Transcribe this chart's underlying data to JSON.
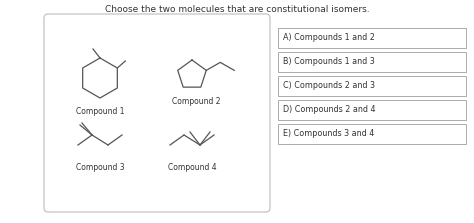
{
  "title": "Choose the two molecules that are constitutional isomers.",
  "title_fontsize": 6.5,
  "bg_color": "#ffffff",
  "answer_options": [
    "A) Compounds 1 and 2",
    "B) Compounds 1 and 3",
    "C) Compounds 2 and 3",
    "D) Compounds 2 and 4",
    "E) Compounds 3 and 4"
  ],
  "compound_labels": [
    "Compound 1",
    "Compound 2",
    "Compound 3",
    "Compound 4"
  ],
  "label_fontsize": 5.5,
  "opt_fontsize": 5.8
}
